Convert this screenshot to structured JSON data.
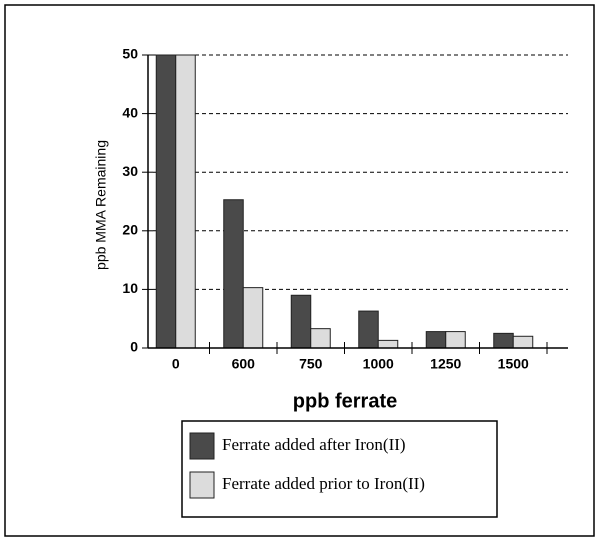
{
  "chart_data": {
    "type": "bar",
    "categories": [
      "0",
      "600",
      "750",
      "1000",
      "1250",
      "1500"
    ],
    "series": [
      {
        "name": "Ferrate added after Iron(II)",
        "color": "#4a4a4a",
        "values": [
          50,
          25.3,
          9,
          6.3,
          2.8,
          2.5
        ]
      },
      {
        "name": "Ferrate added prior to Iron(II)",
        "color": "#dcdcdc",
        "values": [
          50,
          10.3,
          3.3,
          1.3,
          2.8,
          2.0
        ]
      }
    ],
    "xlabel": "ppb ferrate",
    "ylabel": "ppb MMA Remaining",
    "ylim": [
      0,
      50
    ],
    "yticks": [
      0,
      10,
      20,
      30,
      40,
      50
    ],
    "grid": true
  }
}
